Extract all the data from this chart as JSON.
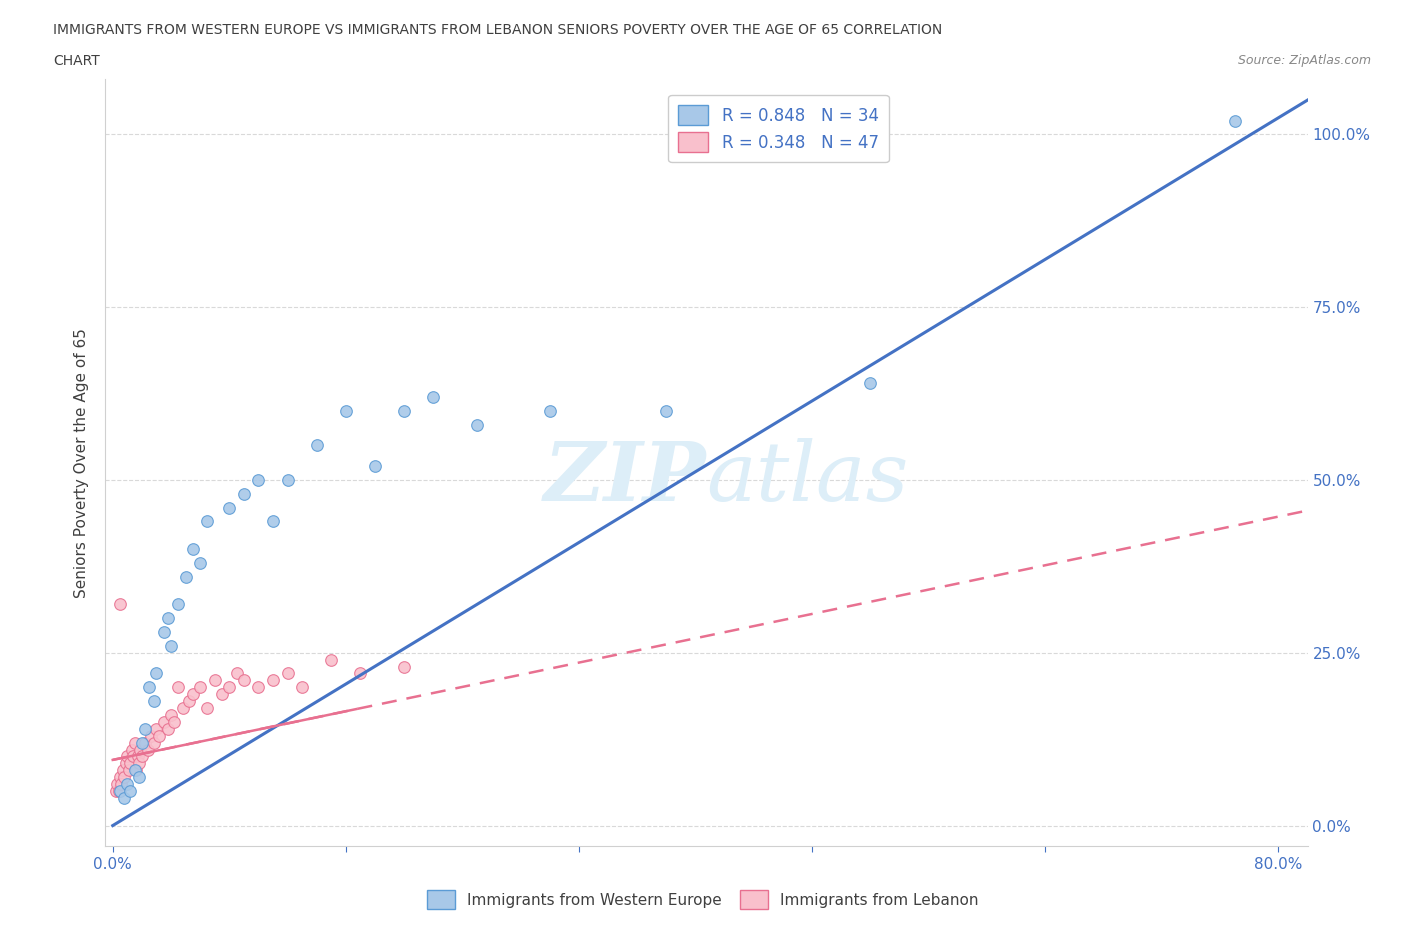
{
  "title_line1": "IMMIGRANTS FROM WESTERN EUROPE VS IMMIGRANTS FROM LEBANON SENIORS POVERTY OVER THE AGE OF 65 CORRELATION",
  "title_line2": "CHART",
  "source": "Source: ZipAtlas.com",
  "ylabel": "Seniors Poverty Over the Age of 65",
  "color_western": "#a8c8e8",
  "color_western_edge": "#5b9bd5",
  "color_lebanon": "#f9c0cc",
  "color_lebanon_edge": "#e87090",
  "color_line_western": "#4472c4",
  "color_line_lebanon": "#e87090",
  "color_text_blue": "#4472c4",
  "color_text_dark": "#404040",
  "color_grid": "#d0d0d0",
  "watermark_color": "#ddeef8",
  "ylim": [
    -0.03,
    1.08
  ],
  "xlim": [
    -0.005,
    0.82
  ],
  "y_tick_vals": [
    0.0,
    0.25,
    0.5,
    0.75,
    1.0
  ],
  "y_tick_labels": [
    "0.0%",
    "25.0%",
    "50.0%",
    "75.0%",
    "100.0%"
  ],
  "x_tick_vals": [
    0.0,
    0.16,
    0.32,
    0.48,
    0.64,
    0.8
  ],
  "x_tick_labels_show": [
    "0.0%",
    "",
    "",
    "",
    "",
    "80.0%"
  ],
  "western_x": [
    0.005,
    0.008,
    0.01,
    0.012,
    0.015,
    0.018,
    0.02,
    0.022,
    0.025,
    0.028,
    0.03,
    0.035,
    0.038,
    0.04,
    0.045,
    0.05,
    0.055,
    0.06,
    0.065,
    0.08,
    0.09,
    0.1,
    0.11,
    0.12,
    0.14,
    0.16,
    0.18,
    0.2,
    0.22,
    0.25,
    0.3,
    0.38,
    0.52,
    0.77
  ],
  "western_y": [
    0.05,
    0.04,
    0.06,
    0.05,
    0.08,
    0.07,
    0.12,
    0.14,
    0.2,
    0.18,
    0.22,
    0.28,
    0.3,
    0.26,
    0.32,
    0.36,
    0.4,
    0.38,
    0.44,
    0.46,
    0.48,
    0.5,
    0.44,
    0.5,
    0.55,
    0.6,
    0.52,
    0.6,
    0.62,
    0.58,
    0.6,
    0.6,
    0.64,
    1.02
  ],
  "lebanon_x": [
    0.002,
    0.003,
    0.004,
    0.005,
    0.006,
    0.007,
    0.008,
    0.009,
    0.01,
    0.011,
    0.012,
    0.013,
    0.014,
    0.015,
    0.016,
    0.017,
    0.018,
    0.019,
    0.02,
    0.022,
    0.024,
    0.026,
    0.028,
    0.03,
    0.032,
    0.035,
    0.038,
    0.04,
    0.042,
    0.045,
    0.048,
    0.052,
    0.055,
    0.06,
    0.065,
    0.07,
    0.075,
    0.08,
    0.085,
    0.09,
    0.1,
    0.11,
    0.12,
    0.13,
    0.15,
    0.17,
    0.2
  ],
  "lebanon_y": [
    0.05,
    0.06,
    0.05,
    0.07,
    0.06,
    0.08,
    0.07,
    0.09,
    0.1,
    0.08,
    0.09,
    0.11,
    0.1,
    0.12,
    0.08,
    0.1,
    0.09,
    0.11,
    0.1,
    0.12,
    0.11,
    0.13,
    0.12,
    0.14,
    0.13,
    0.15,
    0.14,
    0.16,
    0.15,
    0.2,
    0.17,
    0.18,
    0.19,
    0.2,
    0.17,
    0.21,
    0.19,
    0.2,
    0.22,
    0.21,
    0.2,
    0.21,
    0.22,
    0.2,
    0.24,
    0.22,
    0.23
  ],
  "lebanon_outlier_x": [
    0.005
  ],
  "lebanon_outlier_y": [
    0.32
  ]
}
